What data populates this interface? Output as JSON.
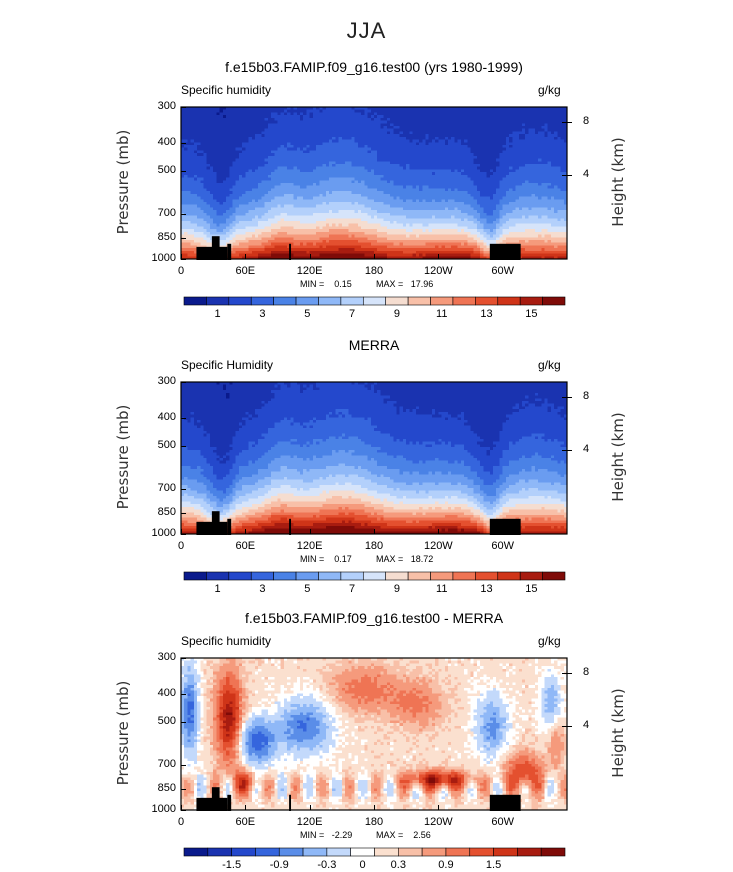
{
  "figure": {
    "season_title": "JJA"
  },
  "chart_data": [
    {
      "type": "heatmap",
      "title": "f.e15b03.FAMIP.f09_g16.test00 (yrs 1980-1999)",
      "variable_label": "Specific humidity",
      "units": "g/kg",
      "ylabel": "Pressure (mb)",
      "ylabel_right": "Height (km)",
      "x_ticks": [
        "0",
        "60E",
        "120E",
        "180",
        "120W",
        "60W"
      ],
      "y_ticks": [
        "300",
        "400",
        "500",
        "700",
        "850",
        "1000"
      ],
      "y_ticks_right": [
        "8",
        "4"
      ],
      "min_text": "MIN =    0.15",
      "max_text": "MAX =   17.96",
      "colorbar_labels": [
        "1",
        "3",
        "5",
        "7",
        "9",
        "11",
        "13",
        "15"
      ],
      "levels": [
        0,
        1,
        2,
        3,
        4,
        5,
        6,
        7,
        8,
        9,
        10,
        11,
        12,
        13,
        14,
        15,
        16
      ]
    },
    {
      "type": "heatmap",
      "title": "MERRA",
      "variable_label": "Specific Humidity",
      "units": "g/kg",
      "ylabel": "Pressure (mb)",
      "ylabel_right": "Height (km)",
      "x_ticks": [
        "0",
        "60E",
        "120E",
        "180",
        "120W",
        "60W"
      ],
      "y_ticks": [
        "300",
        "400",
        "500",
        "700",
        "850",
        "1000"
      ],
      "y_ticks_right": [
        "8",
        "4"
      ],
      "min_text": "MIN =    0.17",
      "max_text": "MAX =   18.72",
      "colorbar_labels": [
        "1",
        "3",
        "5",
        "7",
        "9",
        "11",
        "13",
        "15"
      ],
      "levels": [
        0,
        1,
        2,
        3,
        4,
        5,
        6,
        7,
        8,
        9,
        10,
        11,
        12,
        13,
        14,
        15,
        16
      ]
    },
    {
      "type": "heatmap",
      "title": "f.e15b03.FAMIP.f09_g16.test00 - MERRA",
      "variable_label": "Specific humidity",
      "units": "g/kg",
      "ylabel": "Pressure (mb)",
      "ylabel_right": "Height (km)",
      "x_ticks": [
        "0",
        "60E",
        "120E",
        "180",
        "120W",
        "60W"
      ],
      "y_ticks": [
        "300",
        "400",
        "500",
        "700",
        "850",
        "1000"
      ],
      "y_ticks_right": [
        "8",
        "4"
      ],
      "min_text": "MIN =   -2.29",
      "max_text": "MAX =    2.56",
      "colorbar_labels": [
        "-1.5",
        "-0.9",
        "-0.3",
        "0",
        "0.3",
        "0.9",
        "1.5"
      ],
      "levels": [
        -2.1,
        -1.8,
        -1.5,
        -1.2,
        -0.9,
        -0.6,
        -0.3,
        -0.1,
        0.1,
        0.3,
        0.6,
        0.9,
        1.2,
        1.5,
        1.8,
        2.1
      ]
    }
  ],
  "palettes": {
    "sequential": [
      "#0a1a8c",
      "#1a33b0",
      "#2448cc",
      "#3565dd",
      "#4a82e6",
      "#6a9cf0",
      "#8fb8f7",
      "#b3d0fb",
      "#d6e4fa",
      "#f5ddd0",
      "#f8c0a8",
      "#f59a7c",
      "#ef7454",
      "#e4502f",
      "#cf3418",
      "#a81c10",
      "#7f0b08"
    ],
    "diverging": [
      "#0a1a8c",
      "#1a33b0",
      "#2448cc",
      "#3565dd",
      "#5a8de8",
      "#8fb8f7",
      "#c3d9fb",
      "#ffffff",
      "#fbe0cf",
      "#f8c0a8",
      "#f59a7c",
      "#ef7454",
      "#e4502f",
      "#cf3418",
      "#a81c10",
      "#7f0b08"
    ]
  }
}
